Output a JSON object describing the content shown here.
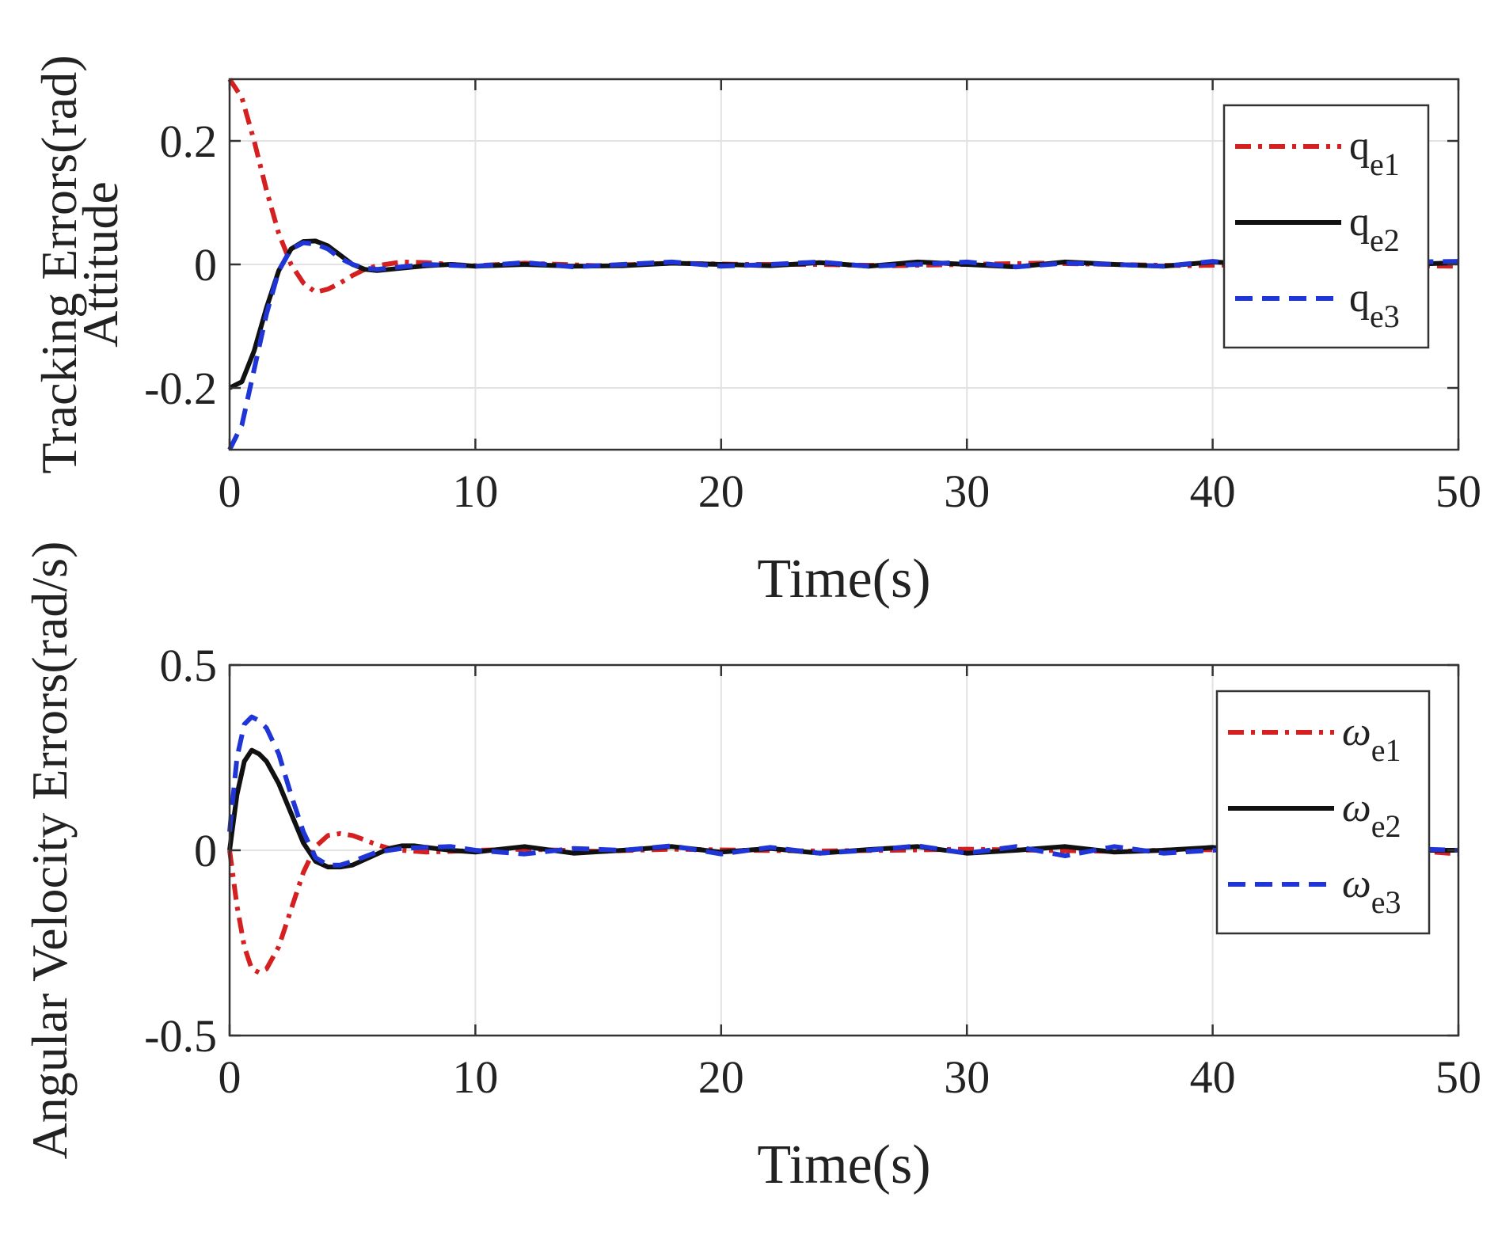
{
  "chart_data": [
    {
      "type": "line",
      "title": "",
      "xlabel": "Time(s)",
      "ylabel_lines": [
        "Attitude",
        "Tracking Errors(rad)"
      ],
      "xlim": [
        0,
        50
      ],
      "ylim": [
        -0.3,
        0.3
      ],
      "xticks": [
        "0",
        "10",
        "20",
        "30",
        "40",
        "50"
      ],
      "yticks": [
        {
          "value": 0.2,
          "label": "0.2"
        },
        {
          "value": 0,
          "label": "0"
        },
        {
          "value": -0.2,
          "label": "-0.2"
        }
      ],
      "grid": true,
      "legend_position": "top-right",
      "series": [
        {
          "name": "q",
          "sub": "e1",
          "color": "#d42020",
          "style": "dashdot",
          "x": [
            0,
            0.5,
            1,
            1.5,
            2,
            2.5,
            3,
            3.5,
            4,
            4.5,
            5,
            5.5,
            6,
            7,
            8,
            9,
            10,
            12,
            15,
            18,
            21,
            24,
            27,
            30,
            33,
            36,
            39,
            42,
            45,
            48,
            50
          ],
          "y": [
            0.3,
            0.27,
            0.2,
            0.12,
            0.05,
            0.0,
            -0.03,
            -0.045,
            -0.04,
            -0.03,
            -0.018,
            -0.008,
            -0.002,
            0.004,
            0.003,
            0.0,
            -0.002,
            0.002,
            -0.002,
            0.002,
            0.0,
            0.0,
            -0.002,
            0.0,
            0.002,
            0.0,
            -0.002,
            0.0,
            0.002,
            -0.002,
            -0.003
          ]
        },
        {
          "name": "q",
          "sub": "e2",
          "color": "#111111",
          "style": "solid",
          "x": [
            0,
            0.5,
            1,
            1.5,
            2,
            2.5,
            3,
            3.5,
            4,
            4.5,
            5,
            5.5,
            6,
            7,
            8,
            9,
            10,
            12,
            14,
            16,
            18,
            20,
            22,
            24,
            26,
            28,
            30,
            32,
            34,
            36,
            38,
            40,
            42,
            44,
            46,
            48,
            50
          ],
          "y": [
            -0.2,
            -0.19,
            -0.14,
            -0.07,
            -0.01,
            0.025,
            0.037,
            0.038,
            0.03,
            0.015,
            0.0,
            -0.008,
            -0.01,
            -0.006,
            -0.002,
            0.0,
            -0.003,
            0.0,
            -0.003,
            -0.002,
            0.002,
            0.0,
            -0.002,
            0.003,
            -0.003,
            0.004,
            0.0,
            -0.004,
            0.004,
            0.0,
            -0.003,
            0.004,
            0.0,
            -0.003,
            0.002,
            0.0,
            0.003
          ]
        },
        {
          "name": "q",
          "sub": "e3",
          "color": "#1f35d6",
          "style": "dashed",
          "x": [
            0,
            0.5,
            1,
            1.5,
            2,
            2.5,
            3,
            3.5,
            4,
            4.5,
            5,
            5.5,
            6,
            7,
            8,
            10,
            12,
            14,
            16,
            18,
            20,
            22,
            24,
            26,
            28,
            30,
            32,
            34,
            36,
            38,
            40,
            42,
            44,
            46,
            48,
            50
          ],
          "y": [
            -0.3,
            -0.26,
            -0.17,
            -0.08,
            -0.01,
            0.025,
            0.035,
            0.033,
            0.025,
            0.01,
            0.0,
            -0.006,
            -0.008,
            -0.004,
            0.0,
            -0.003,
            0.003,
            -0.004,
            0.0,
            0.004,
            -0.003,
            0.0,
            0.004,
            -0.003,
            0.0,
            0.004,
            -0.004,
            0.002,
            0.0,
            -0.003,
            0.005,
            -0.002,
            0.0,
            0.003,
            0.004,
            0.005
          ]
        }
      ]
    },
    {
      "type": "line",
      "title": "",
      "xlabel": "Time(s)",
      "ylabel_lines": [
        "Angular Velocity Errors(rad/s)"
      ],
      "xlim": [
        0,
        50
      ],
      "ylim": [
        -0.5,
        0.5
      ],
      "xticks": [
        "0",
        "10",
        "20",
        "30",
        "40",
        "50"
      ],
      "yticks": [
        {
          "value": 0.5,
          "label": "0.5"
        },
        {
          "value": 0,
          "label": "0"
        },
        {
          "value": -0.5,
          "label": "-0.5"
        }
      ],
      "grid": true,
      "legend_position": "top-right",
      "series": [
        {
          "name": "ω",
          "sub": "e1",
          "color": "#d42020",
          "style": "dashdot",
          "x": [
            0,
            0.3,
            0.6,
            0.9,
            1.2,
            1.5,
            2,
            2.5,
            3,
            3.5,
            4,
            4.5,
            5,
            5.5,
            6,
            6.5,
            7,
            8,
            9,
            10,
            12,
            15,
            18,
            21,
            24,
            27,
            30,
            33,
            36,
            39,
            42,
            45,
            48,
            50
          ],
          "y": [
            0.0,
            -0.15,
            -0.26,
            -0.32,
            -0.33,
            -0.32,
            -0.26,
            -0.16,
            -0.06,
            0.01,
            0.04,
            0.045,
            0.04,
            0.028,
            0.015,
            0.005,
            0.0,
            -0.005,
            -0.003,
            0.0,
            0.003,
            -0.003,
            0.003,
            0.0,
            -0.002,
            0.0,
            0.003,
            0.0,
            -0.003,
            0.002,
            0.0,
            -0.002,
            0.0,
            -0.01
          ]
        },
        {
          "name": "ω",
          "sub": "e2",
          "color": "#111111",
          "style": "solid",
          "x": [
            0,
            0.3,
            0.6,
            0.9,
            1.2,
            1.5,
            2,
            2.5,
            3,
            3.5,
            4,
            4.5,
            5,
            5.5,
            6,
            6.5,
            7,
            7.5,
            8,
            9,
            10,
            12,
            14,
            16,
            18,
            20,
            22,
            24,
            26,
            28,
            30,
            32,
            34,
            36,
            38,
            40,
            42,
            44,
            46,
            48,
            50
          ],
          "y": [
            0.0,
            0.15,
            0.24,
            0.27,
            0.26,
            0.24,
            0.18,
            0.1,
            0.02,
            -0.03,
            -0.045,
            -0.045,
            -0.04,
            -0.025,
            -0.01,
            0.005,
            0.012,
            0.012,
            0.008,
            0.0,
            -0.005,
            0.01,
            -0.008,
            0.0,
            0.01,
            -0.005,
            0.005,
            -0.008,
            0.002,
            0.01,
            -0.008,
            0.0,
            0.01,
            -0.005,
            0.0,
            0.008,
            -0.005,
            0.0,
            0.005,
            0.0,
            0.0
          ]
        },
        {
          "name": "ω",
          "sub": "e3",
          "color": "#1f35d6",
          "style": "dashed",
          "x": [
            0,
            0.3,
            0.6,
            0.9,
            1.2,
            1.5,
            2,
            2.5,
            3,
            3.5,
            4,
            4.5,
            5,
            6,
            7,
            8,
            9,
            10,
            12,
            14,
            16,
            18,
            20,
            22,
            24,
            26,
            28,
            30,
            32,
            34,
            36,
            38,
            40,
            42,
            44,
            46,
            48,
            50
          ],
          "y": [
            0.05,
            0.25,
            0.34,
            0.36,
            0.35,
            0.33,
            0.26,
            0.15,
            0.05,
            -0.02,
            -0.04,
            -0.04,
            -0.03,
            -0.005,
            0.005,
            0.008,
            0.01,
            0.0,
            -0.01,
            0.005,
            0.0,
            0.012,
            -0.01,
            0.008,
            -0.008,
            0.0,
            0.012,
            -0.008,
            0.01,
            -0.015,
            0.01,
            -0.008,
            0.0,
            0.008,
            -0.005,
            0.0,
            0.004,
            0.0
          ]
        }
      ]
    }
  ]
}
